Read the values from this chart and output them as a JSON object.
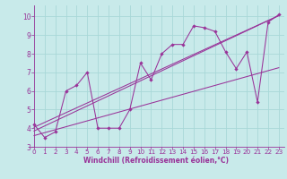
{
  "xlabel": "Windchill (Refroidissement éolien,°C)",
  "bg_color": "#c8eaea",
  "line_color": "#993399",
  "grid_color": "#a8d8d8",
  "xlim": [
    -0.5,
    23.5
  ],
  "ylim": [
    3.0,
    10.6
  ],
  "xticks": [
    0,
    1,
    2,
    3,
    4,
    5,
    6,
    7,
    8,
    9,
    10,
    11,
    12,
    13,
    14,
    15,
    16,
    17,
    18,
    19,
    20,
    21,
    22,
    23
  ],
  "yticks": [
    3,
    4,
    5,
    6,
    7,
    8,
    9,
    10
  ],
  "y_data": [
    4.2,
    3.5,
    3.8,
    6.0,
    6.3,
    7.0,
    4.0,
    4.0,
    4.0,
    5.0,
    7.5,
    6.6,
    8.0,
    8.5,
    8.5,
    9.5,
    9.4,
    9.2,
    8.1,
    7.2,
    8.1,
    5.4,
    9.7,
    10.1
  ],
  "regression_lines": [
    {
      "x_start": 0,
      "y_start": 3.85,
      "x_end": 23,
      "y_end": 10.05
    },
    {
      "x_start": 0,
      "y_start": 3.6,
      "x_end": 23,
      "y_end": 7.25
    },
    {
      "x_start": 0,
      "y_start": 4.05,
      "x_end": 23,
      "y_end": 10.05
    }
  ],
  "tick_fontsize": 5.2,
  "xlabel_fontsize": 5.5
}
